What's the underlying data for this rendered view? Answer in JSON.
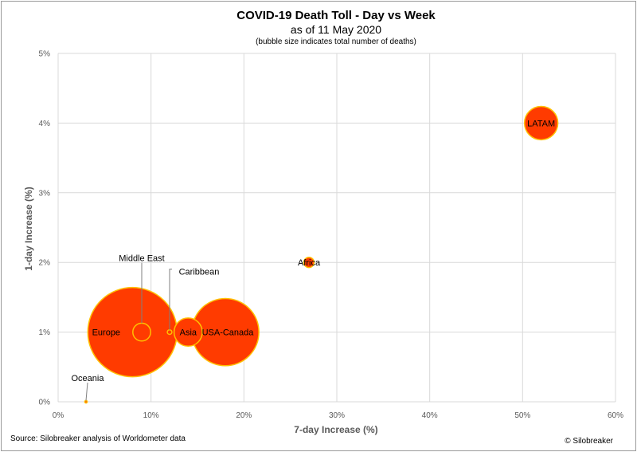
{
  "chart_data": {
    "type": "bubble",
    "title": "COVID-19 Death Toll - Day vs Week",
    "subtitle": "as of 11 May 2020",
    "note": "(bubble size indicates total number of deaths)",
    "xlabel": "7-day Increase (%)",
    "ylabel": "1-day Increase (%)",
    "xlim": [
      0,
      60
    ],
    "ylim": [
      0,
      5
    ],
    "x_ticks": [
      "0%",
      "10%",
      "20%",
      "30%",
      "40%",
      "50%",
      "60%"
    ],
    "y_ticks": [
      "0%",
      "1%",
      "2%",
      "3%",
      "4%",
      "5%"
    ],
    "grid": true,
    "colors": {
      "fill": "#ff3b00",
      "stroke": "#ffc000",
      "grid": "#d9d9d9",
      "leader": "#7f7f7f"
    },
    "points": [
      {
        "label": "Europe",
        "x": 8,
        "y": 1,
        "size": 150000
      },
      {
        "label": "USA-Canada",
        "x": 18,
        "y": 1,
        "size": 85000
      },
      {
        "label": "Asia",
        "x": 14,
        "y": 1,
        "size": 15000
      },
      {
        "label": "Middle East",
        "x": 9,
        "y": 1,
        "size": 6000
      },
      {
        "label": "Caribbean",
        "x": 12,
        "y": 1,
        "size": 400
      },
      {
        "label": "LATAM",
        "x": 52,
        "y": 4,
        "size": 21000
      },
      {
        "label": "Africa",
        "x": 27,
        "y": 2,
        "size": 2000
      },
      {
        "label": "Oceania",
        "x": 3,
        "y": 0,
        "size": 120
      }
    ]
  },
  "footer": {
    "source": "Source: Silobreaker analysis of Worldometer data",
    "credit": "© Silobreaker"
  }
}
